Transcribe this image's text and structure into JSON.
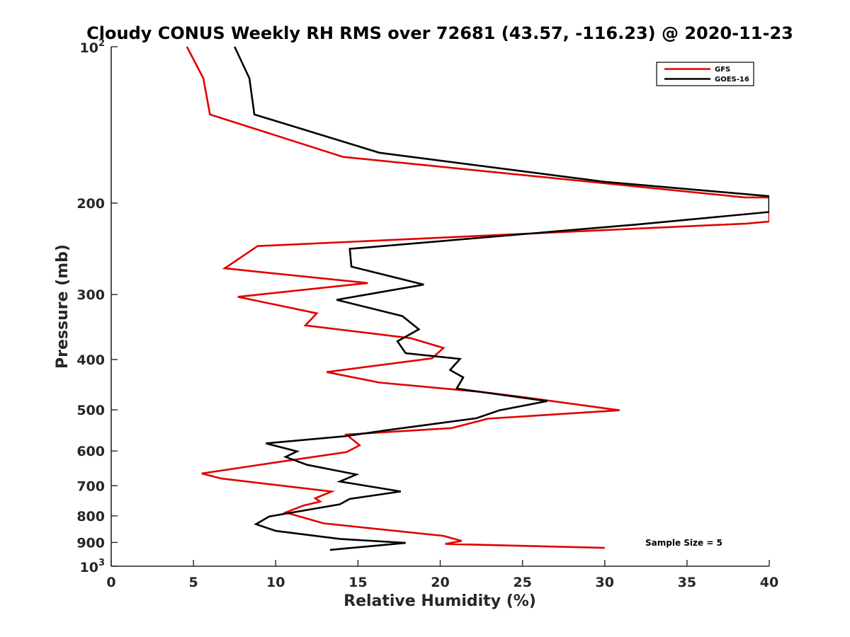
{
  "chart_data": {
    "type": "line",
    "title": "Cloudy CONUS Weekly RH RMS over 72681 (43.57, -116.23) @ 2020-11-23",
    "xlabel": "Relative Humidity (%)",
    "ylabel": "Pressure (mb)",
    "xlim": [
      0,
      40
    ],
    "ylim": [
      100,
      1000
    ],
    "yscale": "log",
    "y_reversed": true,
    "x_ticks": [
      "0",
      "5",
      "10",
      "15",
      "20",
      "25",
      "30",
      "35",
      "40"
    ],
    "y_ticks": [
      {
        "value": 100,
        "base": "10",
        "exp": "2"
      },
      {
        "value": 200,
        "label": "200"
      },
      {
        "value": 300,
        "label": "300"
      },
      {
        "value": 400,
        "label": "400"
      },
      {
        "value": 500,
        "label": "500"
      },
      {
        "value": 600,
        "label": "600"
      },
      {
        "value": 700,
        "label": "700"
      },
      {
        "value": 800,
        "label": "800"
      },
      {
        "value": 900,
        "label": "900"
      },
      {
        "value": 1000,
        "base": "10",
        "exp": "3"
      }
    ],
    "grid": false,
    "legend_position": "top-right",
    "series": [
      {
        "name": "GFS",
        "color": "#e00000",
        "points": [
          [
            4.6,
            100
          ],
          [
            5.6,
            115
          ],
          [
            6.0,
            135
          ],
          [
            14.1,
            163
          ],
          [
            38.5,
            195
          ],
          [
            40.0,
            195
          ],
          [
            40.0,
            217
          ],
          [
            38.6,
            219
          ],
          [
            8.9,
            242
          ],
          [
            6.9,
            267
          ],
          [
            15.6,
            285
          ],
          [
            7.7,
            303
          ],
          [
            12.5,
            326
          ],
          [
            11.8,
            344
          ],
          [
            18.2,
            364
          ],
          [
            20.2,
            380
          ],
          [
            19.5,
            398
          ],
          [
            13.1,
            423
          ],
          [
            16.3,
            443
          ],
          [
            22.5,
            462
          ],
          [
            24.9,
            472
          ],
          [
            30.9,
            501
          ],
          [
            22.9,
            520
          ],
          [
            20.7,
            542
          ],
          [
            14.3,
            558
          ],
          [
            15.1,
            585
          ],
          [
            14.3,
            603
          ],
          [
            9.9,
            632
          ],
          [
            5.5,
            663
          ],
          [
            6.7,
            678
          ],
          [
            13.4,
            718
          ],
          [
            12.4,
            740
          ],
          [
            12.7,
            751
          ],
          [
            11.7,
            764
          ],
          [
            10.6,
            788
          ],
          [
            12.9,
            827
          ],
          [
            20.2,
            874
          ],
          [
            21.3,
            894
          ],
          [
            20.3,
            906
          ],
          [
            30.0,
            922
          ]
        ]
      },
      {
        "name": "GOES-16",
        "color": "#000000",
        "points": [
          [
            7.5,
            100
          ],
          [
            8.4,
            115
          ],
          [
            8.7,
            135
          ],
          [
            16.3,
            160
          ],
          [
            30.0,
            182
          ],
          [
            40.0,
            194
          ],
          [
            40.0,
            208
          ],
          [
            31.9,
            220
          ],
          [
            14.5,
            245
          ],
          [
            14.6,
            265
          ],
          [
            19.0,
            287
          ],
          [
            13.7,
            307
          ],
          [
            17.7,
            330
          ],
          [
            18.7,
            350
          ],
          [
            17.4,
            369
          ],
          [
            17.9,
            389
          ],
          [
            21.2,
            399
          ],
          [
            20.6,
            419
          ],
          [
            21.4,
            433
          ],
          [
            21.0,
            455
          ],
          [
            26.5,
            481
          ],
          [
            23.6,
            501
          ],
          [
            22.2,
            519
          ],
          [
            16.8,
            547
          ],
          [
            14.2,
            562
          ],
          [
            9.4,
            580
          ],
          [
            11.3,
            601
          ],
          [
            10.6,
            616
          ],
          [
            11.9,
            638
          ],
          [
            14.9,
            666
          ],
          [
            13.9,
            687
          ],
          [
            17.6,
            718
          ],
          [
            14.5,
            742
          ],
          [
            13.9,
            760
          ],
          [
            9.6,
            802
          ],
          [
            8.8,
            830
          ],
          [
            10.0,
            855
          ],
          [
            13.9,
            886
          ],
          [
            17.9,
            902
          ],
          [
            13.3,
            930
          ]
        ]
      }
    ],
    "annotations": [
      "Sample Size = 5"
    ]
  }
}
